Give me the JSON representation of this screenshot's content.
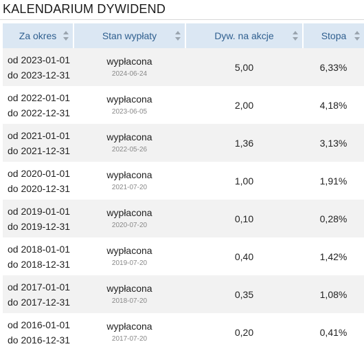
{
  "title": "KALENDARIUM DYWIDEND",
  "columns": [
    {
      "label": "Za okres"
    },
    {
      "label": "Stan wypłaty"
    },
    {
      "label": "Dyw. na akcje"
    },
    {
      "label": "Stopa"
    }
  ],
  "rows": [
    {
      "from": "od 2023-01-01",
      "to": "do 2023-12-31",
      "status": "wypłacona",
      "date": "2024-06-24",
      "dividend": "5,00",
      "rate": "6,33%"
    },
    {
      "from": "od 2022-01-01",
      "to": "do 2022-12-31",
      "status": "wypłacona",
      "date": "2023-06-05",
      "dividend": "2,00",
      "rate": "4,18%"
    },
    {
      "from": "od 2021-01-01",
      "to": "do 2021-12-31",
      "status": "wypłacona",
      "date": "2022-05-26",
      "dividend": "1,36",
      "rate": "3,13%"
    },
    {
      "from": "od 2020-01-01",
      "to": "do 2020-12-31",
      "status": "wypłacona",
      "date": "2021-07-20",
      "dividend": "1,00",
      "rate": "1,91%"
    },
    {
      "from": "od 2019-01-01",
      "to": "do 2019-12-31",
      "status": "wypłacona",
      "date": "2020-07-20",
      "dividend": "0,10",
      "rate": "0,28%"
    },
    {
      "from": "od 2018-01-01",
      "to": "do 2018-12-31",
      "status": "wypłacona",
      "date": "2019-07-20",
      "dividend": "0,40",
      "rate": "1,42%"
    },
    {
      "from": "od 2017-01-01",
      "to": "do 2017-12-31",
      "status": "wypłacona",
      "date": "2018-07-20",
      "dividend": "0,35",
      "rate": "1,08%"
    },
    {
      "from": "od 2016-01-01",
      "to": "do 2016-12-31",
      "status": "wypłacona",
      "date": "2017-07-20",
      "dividend": "0,20",
      "rate": "0,41%"
    }
  ],
  "icons": {
    "sort": "sort-arrows-icon"
  },
  "colors": {
    "header_bg": "#dbe7f3",
    "header_text": "#2f5f8f",
    "stripe": "#f2f2f2",
    "date_text": "#888888"
  }
}
